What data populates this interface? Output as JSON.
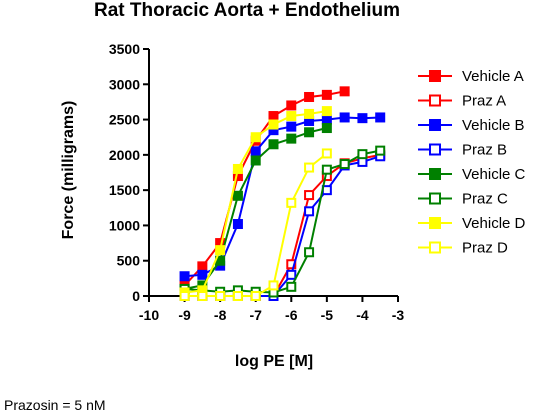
{
  "chart_data": {
    "type": "line",
    "title": "Rat Thoracic Aorta + Endothelium",
    "xlabel": "log PE [M]",
    "ylabel": "Force (milligrams)",
    "xlim": [
      -10,
      -3
    ],
    "ylim": [
      0,
      3500
    ],
    "xticks": [
      -10,
      -9,
      -8,
      -7,
      -6,
      -5,
      -4,
      -3
    ],
    "yticks": [
      0,
      500,
      1000,
      1500,
      2000,
      2500,
      3000,
      3500
    ],
    "legend_position": "right",
    "series": [
      {
        "name": "Vehicle A",
        "color": "#ff0000",
        "marker": "filled-square",
        "x": [
          -9,
          -8.5,
          -8,
          -7.5,
          -7,
          -6.5,
          -6,
          -5.5,
          -5,
          -4.5
        ],
        "y": [
          150,
          420,
          750,
          1700,
          2200,
          2550,
          2700,
          2820,
          2850,
          2900
        ]
      },
      {
        "name": "Praz A",
        "color": "#ff0000",
        "marker": "open-square",
        "x": [
          -9,
          -8.5,
          -8,
          -7.5,
          -7,
          -6.5,
          -6,
          -5.5,
          -5,
          -4.5,
          -4,
          -3.5
        ],
        "y": [
          0,
          0,
          0,
          0,
          0,
          0,
          450,
          1430,
          1700,
          1880,
          1950,
          2000
        ]
      },
      {
        "name": "Vehicle B",
        "color": "#0000ff",
        "marker": "filled-square",
        "x": [
          -9,
          -8.5,
          -8,
          -7.5,
          -7,
          -6.5,
          -6,
          -5.5,
          -5,
          -4.5,
          -4,
          -3.5
        ],
        "y": [
          280,
          300,
          430,
          1020,
          2050,
          2350,
          2400,
          2480,
          2500,
          2530,
          2520,
          2530
        ]
      },
      {
        "name": "Praz B",
        "color": "#0000ff",
        "marker": "open-square",
        "x": [
          -9,
          -8.5,
          -8,
          -7.5,
          -7,
          -6.5,
          -6,
          -5.5,
          -5,
          -4.5,
          -4,
          -3.5
        ],
        "y": [
          0,
          0,
          0,
          0,
          0,
          0,
          300,
          1200,
          1500,
          1850,
          1900,
          1980
        ]
      },
      {
        "name": "Vehicle C",
        "color": "#008000",
        "marker": "filled-square",
        "x": [
          -9,
          -8.5,
          -8,
          -7.5,
          -7,
          -6.5,
          -6,
          -5.5,
          -5
        ],
        "y": [
          100,
          150,
          500,
          1420,
          1920,
          2150,
          2230,
          2320,
          2380
        ]
      },
      {
        "name": "Praz C",
        "color": "#008000",
        "marker": "open-square",
        "x": [
          -9,
          -8.5,
          -8,
          -7.5,
          -7,
          -6.5,
          -6,
          -5.5,
          -5,
          -4.5,
          -4,
          -3.5
        ],
        "y": [
          100,
          80,
          60,
          80,
          60,
          50,
          130,
          620,
          1790,
          1870,
          2010,
          2060
        ]
      },
      {
        "name": "Vehicle D",
        "color": "#ffff00",
        "marker": "filled-square",
        "x": [
          -9,
          -8.5,
          -8,
          -7.5,
          -7,
          -6.5,
          -6,
          -5.5,
          -5
        ],
        "y": [
          50,
          80,
          650,
          1800,
          2250,
          2430,
          2550,
          2580,
          2620
        ]
      },
      {
        "name": "Praz D",
        "color": "#ffff00",
        "marker": "open-square",
        "x": [
          -9,
          -8.5,
          -8,
          -7.5,
          -7,
          -6.5,
          -6,
          -5.5,
          -5
        ],
        "y": [
          0,
          0,
          0,
          0,
          0,
          150,
          1320,
          1820,
          2020
        ]
      }
    ]
  },
  "footnote": "Prazosin = 5 nM"
}
